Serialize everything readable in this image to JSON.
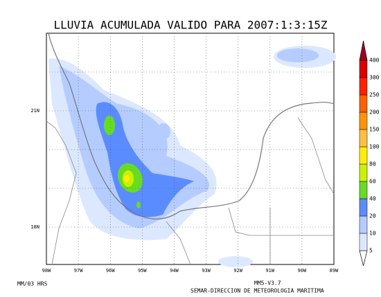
{
  "title": "LLUVIA ACUMULADA VALIDO PARA 2007:1:3:15Z",
  "map": {
    "x_ticks": [
      "98W",
      "97W",
      "96W",
      "95W",
      "94W",
      "93W",
      "92W",
      "91W",
      "90W",
      "89W"
    ],
    "y_ticks": [
      "21N",
      "18N"
    ]
  },
  "colorbar": {
    "levels": [
      "5",
      "10",
      "20",
      "40",
      "60",
      "80",
      "100",
      "150",
      "200",
      "250",
      "300",
      "400"
    ],
    "colors": [
      "#dce8ff",
      "#b4ccff",
      "#5b8cff",
      "#66dd22",
      "#ccf000",
      "#ffee00",
      "#ffc040",
      "#ff9400",
      "#ff6000",
      "#ff2000",
      "#dd0000",
      "#a00024"
    ]
  },
  "footer": {
    "left": "MM/03 HRS",
    "model": "MM5-V3.7",
    "credit": "SEMAR-DIRECCION DE METEOROLOGIA MARITIMA"
  }
}
